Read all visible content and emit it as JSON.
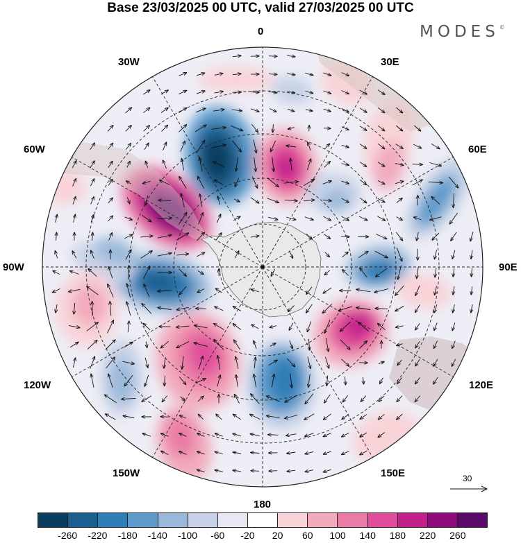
{
  "title": "Base 23/03/2025 00 UTC, valid 27/03/2025 00 UTC",
  "brand": {
    "name": "MODES",
    "mark": "©"
  },
  "map": {
    "projection": "south-polar-stereographic",
    "field": "wind anomaly (shaded) with wind vectors",
    "longitude_labels": {
      "top": "0",
      "top_right": "30E",
      "upper_right": "60E",
      "right": "90E",
      "lower_right": "120E",
      "bottom_right": "150E",
      "bottom": "180",
      "bottom_left": "150W",
      "lower_left": "120W",
      "left": "90W",
      "upper_left": "60W",
      "top_left": "30W"
    }
  },
  "vector_reference": {
    "value": "30"
  },
  "colorbar": {
    "colors": [
      "#0b3e5e",
      "#1a5f8f",
      "#2f7db6",
      "#5d9bcc",
      "#9ab8d9",
      "#c6d1e6",
      "#e8e8f3",
      "#ffffff",
      "#f8d3d8",
      "#f2aabc",
      "#ea7ba6",
      "#e04d9a",
      "#c3208c",
      "#8f0a7b",
      "#5b0a6a"
    ],
    "ticks": [
      "-260",
      "-220",
      "-180",
      "-140",
      "-100",
      "-60",
      "-20",
      "20",
      "60",
      "100",
      "140",
      "180",
      "220",
      "260"
    ]
  }
}
